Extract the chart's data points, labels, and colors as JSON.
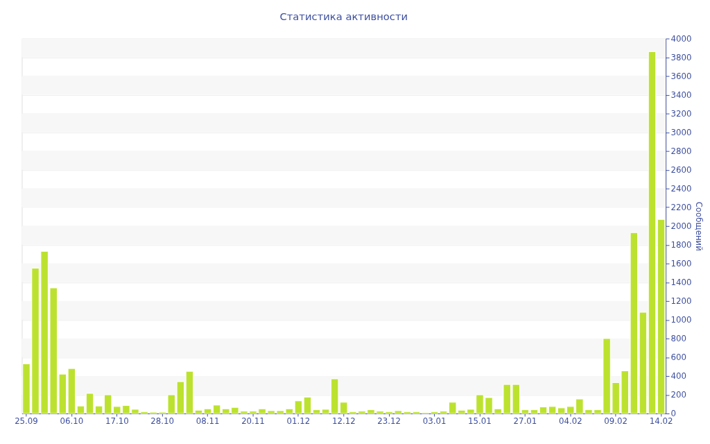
{
  "chart_data": {
    "type": "bar",
    "title": "Статистика активности",
    "ylabel": "Сообщений",
    "categories": [
      "25.09",
      null,
      null,
      null,
      null,
      "06.10",
      null,
      null,
      null,
      null,
      "17.10",
      null,
      null,
      null,
      null,
      "28.10",
      null,
      null,
      null,
      null,
      "08.11",
      null,
      null,
      null,
      null,
      "20.11",
      null,
      null,
      null,
      null,
      "01.12",
      null,
      null,
      null,
      null,
      "12.12",
      null,
      null,
      null,
      null,
      "23.12",
      null,
      null,
      null,
      null,
      "03.01",
      null,
      null,
      null,
      null,
      "15.01",
      null,
      null,
      null,
      null,
      "27.01",
      null,
      null,
      null,
      null,
      "04.02",
      null,
      null,
      null,
      null,
      "09.02",
      null,
      null,
      null,
      null,
      "14.02"
    ],
    "values": [
      530,
      1550,
      1730,
      1340,
      420,
      480,
      80,
      215,
      80,
      200,
      75,
      85,
      45,
      20,
      15,
      15,
      200,
      340,
      450,
      35,
      50,
      90,
      50,
      65,
      25,
      25,
      50,
      30,
      30,
      50,
      135,
      175,
      40,
      45,
      370,
      120,
      20,
      25,
      40,
      25,
      20,
      30,
      20,
      20,
      10,
      20,
      25,
      120,
      35,
      45,
      200,
      170,
      50,
      310,
      310,
      40,
      40,
      70,
      75,
      60,
      75,
      155,
      40,
      40,
      800,
      330,
      455,
      1930,
      1080,
      3860,
      2070
    ],
    "color": "#bce22f",
    "ylim": [
      0,
      4000
    ],
    "yticks": [
      0,
      200,
      400,
      600,
      800,
      1000,
      1200,
      1400,
      1600,
      1800,
      2000,
      2200,
      2400,
      2600,
      2800,
      3000,
      3200,
      3400,
      3600,
      3800,
      4000
    ],
    "grid": "y"
  }
}
